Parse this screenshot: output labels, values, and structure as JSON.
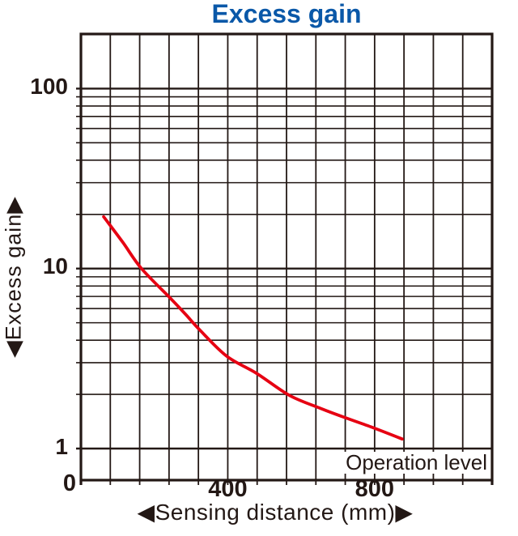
{
  "page": {
    "background": "#ffffff"
  },
  "chart_data": {
    "type": "line",
    "title": "Excess gain",
    "title_color": "#0a58a8",
    "text_color": "#231815",
    "grid_color": "#231815",
    "xlabel": "◀Sensing distance (mm)▶",
    "ylabel": "◀Excess gain▶",
    "annotation": "Operation level",
    "legend": "none",
    "grid": "on",
    "x_axis": {
      "min": 0,
      "max": 1120,
      "grid_step": 80,
      "origin_label": "0",
      "ticks": [
        {
          "value": 400,
          "label": "400"
        },
        {
          "value": 800,
          "label": "800"
        }
      ]
    },
    "y_axis": {
      "scale": "log",
      "bottom_value": 0.66,
      "top_value": 200,
      "ticks": [
        {
          "value": 100,
          "label": "100"
        },
        {
          "value": 10,
          "label": "10"
        },
        {
          "value": 1,
          "label": "1"
        }
      ],
      "minor_gridlines": [
        2,
        3,
        4,
        5,
        6,
        7,
        8,
        9,
        20,
        30,
        40,
        50,
        60,
        70,
        80,
        90
      ]
    },
    "series": [
      {
        "name": "excess-gain-curve",
        "color": "#e60012",
        "points": [
          [
            62,
            19.4
          ],
          [
            115,
            13.9
          ],
          [
            165,
            10.0
          ],
          [
            245,
            6.8
          ],
          [
            284,
            5.6
          ],
          [
            324,
            4.55
          ],
          [
            397,
            3.26
          ],
          [
            478,
            2.62
          ],
          [
            567,
            1.98
          ],
          [
            650,
            1.68
          ],
          [
            714,
            1.5
          ],
          [
            794,
            1.31
          ],
          [
            875,
            1.13
          ]
        ]
      }
    ]
  }
}
